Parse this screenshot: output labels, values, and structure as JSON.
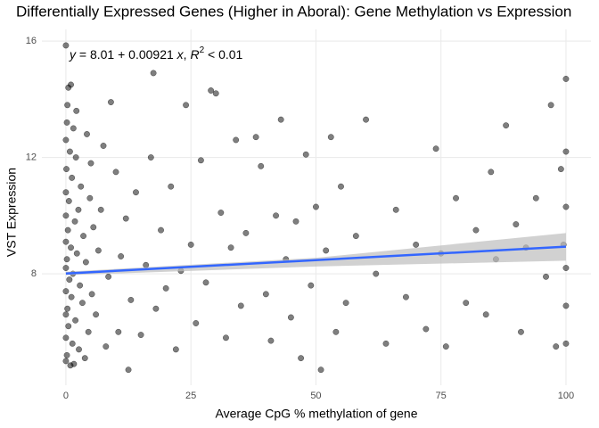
{
  "chart_data": {
    "type": "scatter",
    "title": "Differentially Expressed Genes (Higher in Aboral): Gene Methylation vs Expression",
    "xlabel": "Average CpG % methylation of gene",
    "ylabel": "VST Expression",
    "annotation": [
      "y",
      " = 8.01 + 0.00921 ",
      "x",
      ", ",
      "R",
      "2",
      " < 0.01"
    ],
    "xlim": [
      -4.8,
      105
    ],
    "ylim": [
      4.17,
      16.4
    ],
    "xticks": [
      0,
      25,
      50,
      75,
      100
    ],
    "yticks": [
      8,
      12,
      16
    ],
    "grid": true,
    "fit": {
      "intercept": 8.01,
      "slope": 0.00921,
      "color": "#3366ff",
      "ci_x": [
        0,
        50,
        100
      ],
      "ci_lower": [
        7.95,
        8.25,
        8.45
      ],
      "ci_upper": [
        8.07,
        8.55,
        9.4
      ],
      "ci_color": "#bdbdbd"
    },
    "series": [
      {
        "color": "#000000",
        "x": [
          0,
          0.5,
          1,
          0.3,
          0.2,
          1.5,
          0,
          0.8,
          2,
          0.1,
          1.2,
          3,
          0,
          0.6,
          2.5,
          0,
          1.8,
          0.4,
          3.5,
          0,
          1,
          2.2,
          0.2,
          4,
          0,
          1.4,
          0.7,
          2.8,
          0,
          1.1,
          3.3,
          0.3,
          0,
          1.9,
          0.5,
          4.5,
          0,
          1.3,
          2.6,
          0.2,
          0,
          1.6,
          3.8,
          0.9,
          2.1,
          4.2,
          5,
          4.8,
          5.5,
          5.2,
          6,
          6.5,
          7,
          7.5,
          8,
          8.5,
          9,
          10,
          10.5,
          11,
          12,
          12.5,
          13,
          14,
          15,
          16,
          17,
          17.5,
          18,
          19,
          20,
          21,
          22,
          23,
          24,
          25,
          26,
          27,
          28,
          29,
          30,
          31,
          32,
          33,
          34,
          35,
          36,
          38,
          39,
          40,
          41,
          42,
          43,
          44,
          45,
          46,
          47,
          48,
          49,
          50,
          51,
          52,
          53,
          54,
          55,
          56,
          58,
          60,
          62,
          64,
          66,
          68,
          70,
          72,
          74,
          75,
          76,
          78,
          80,
          82,
          84,
          85,
          86,
          88,
          90,
          91,
          92,
          94,
          96,
          97,
          98,
          99,
          100,
          100,
          100,
          100,
          100,
          100,
          99.5
        ],
        "values": [
          15.85,
          14.4,
          14.5,
          13.8,
          13.2,
          13.0,
          12.6,
          12.2,
          12.0,
          11.6,
          11.3,
          11.0,
          10.8,
          10.5,
          10.2,
          10.0,
          9.8,
          9.5,
          9.3,
          9.1,
          8.9,
          8.7,
          8.5,
          8.4,
          8.2,
          8.0,
          7.8,
          7.6,
          7.4,
          7.2,
          7.0,
          6.8,
          6.6,
          6.4,
          6.2,
          6.0,
          5.8,
          5.6,
          5.4,
          5.2,
          5.0,
          4.9,
          5.1,
          4.85,
          13.6,
          12.8,
          11.8,
          10.6,
          9.6,
          7.3,
          6.6,
          8.8,
          10.2,
          12.4,
          5.5,
          7.9,
          13.9,
          11.5,
          6.0,
          8.6,
          9.9,
          4.7,
          7.1,
          10.8,
          5.9,
          8.3,
          12.0,
          14.9,
          6.8,
          9.5,
          7.5,
          11.0,
          5.4,
          8.1,
          13.8,
          9.0,
          6.3,
          11.9,
          7.7,
          14.3,
          14.2,
          10.1,
          5.8,
          8.9,
          12.6,
          6.9,
          9.4,
          12.7,
          11.7,
          7.3,
          5.7,
          10.0,
          13.3,
          8.5,
          6.5,
          9.8,
          5.1,
          12.1,
          7.6,
          10.3,
          4.7,
          8.8,
          12.7,
          6.0,
          11.0,
          7.0,
          9.3,
          13.3,
          8.0,
          5.6,
          10.2,
          7.2,
          9.0,
          6.1,
          12.3,
          8.7,
          5.5,
          10.6,
          7.0,
          9.5,
          6.6,
          11.5,
          8.5,
          13.1,
          9.7,
          6.0,
          8.9,
          10.6,
          7.9,
          13.8,
          5.5,
          11.6,
          14.7,
          10.3,
          8.2,
          6.9,
          12.2,
          5.6,
          9.0
        ]
      }
    ]
  }
}
